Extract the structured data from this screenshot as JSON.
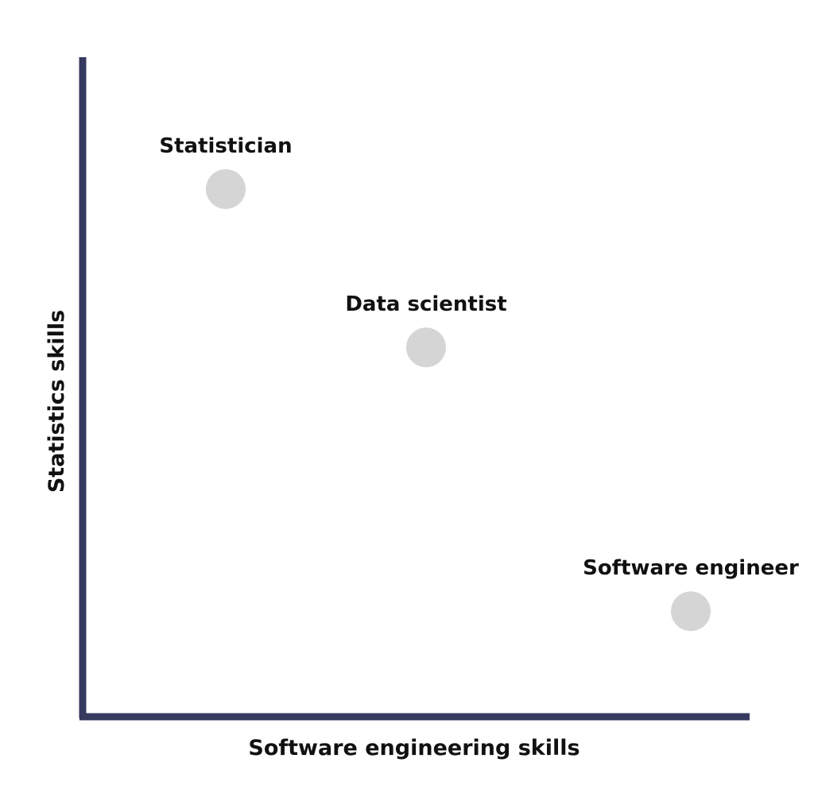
{
  "chart_data": {
    "type": "scatter",
    "title": "",
    "xlabel": "Software engineering skills",
    "ylabel": "Statistics skills",
    "xlim": [
      0,
      10
    ],
    "ylim": [
      0,
      10
    ],
    "grid": false,
    "legend": "none",
    "points": [
      {
        "label": "Statistician",
        "x": 2.0,
        "y": 8.0
      },
      {
        "label": "Data scientist",
        "x": 4.8,
        "y": 5.6
      },
      {
        "label": "Software engineer",
        "x": 8.5,
        "y": 1.6
      }
    ],
    "colors": {
      "axis": "#363a5f",
      "point": "#d5d5d5",
      "text": "#111111"
    }
  }
}
